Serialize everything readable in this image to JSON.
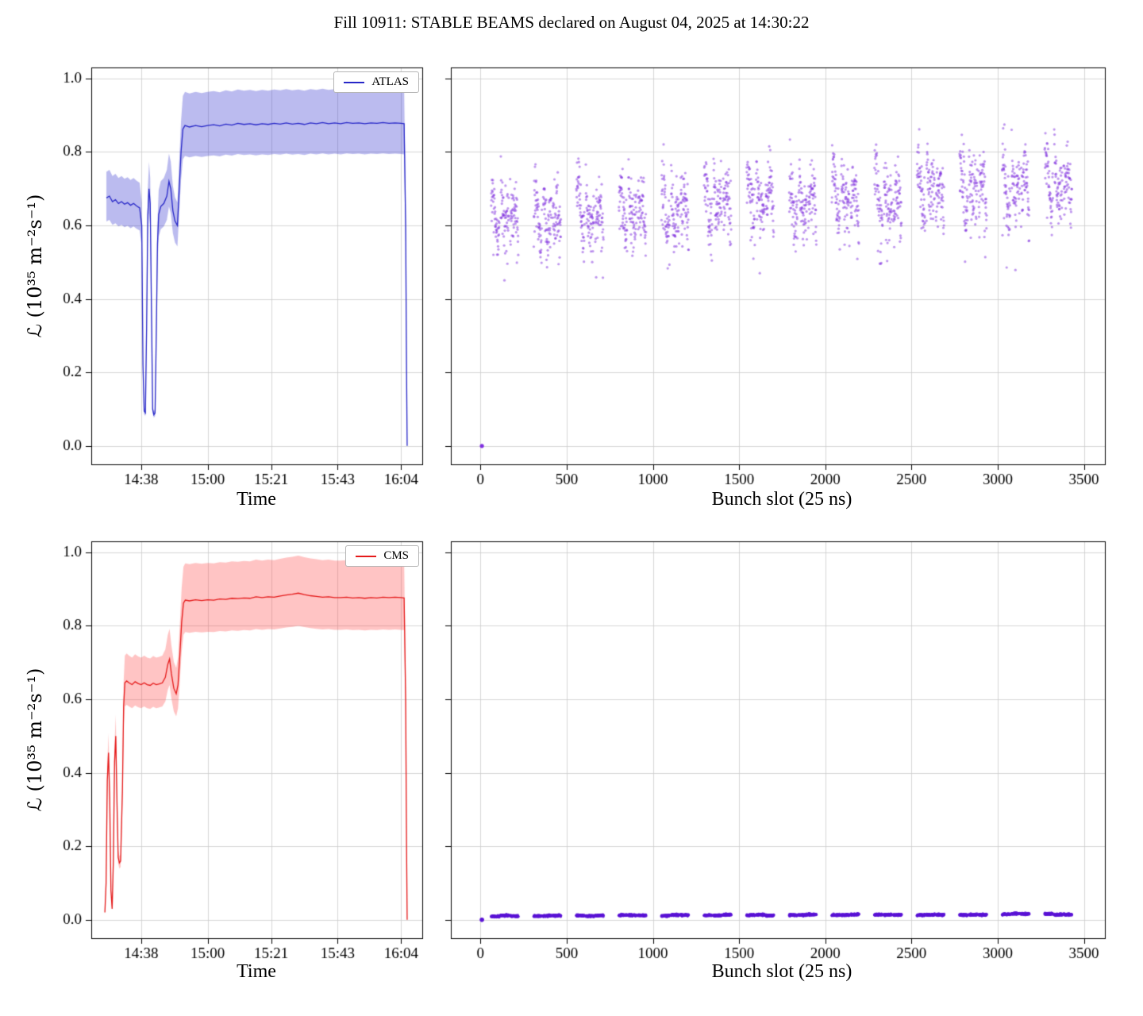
{
  "title": "Fill 10911: STABLE BEAMS declared on August 04, 2025 at 14:30:22",
  "grid_color": "#cccccc",
  "filling_scheme": {
    "start_slot": 62,
    "n_groups": 14,
    "trains_per_group": 3,
    "bunches_per_train": 48,
    "intra_train_gap": 7,
    "group_period": 247
  },
  "chart_data": [
    {
      "id": "atlas-luminosity-vs-time",
      "type": "area",
      "xlabel": "Time",
      "ylabel": "ℒ (10³⁵ m⁻²s⁻¹)",
      "legend": [
        "ATLAS"
      ],
      "line_color": "#2727c8",
      "band_color": "rgba(60,60,210,0.35)",
      "xlim": [
        21.5,
        131
      ],
      "ylim": [
        -0.05,
        1.03
      ],
      "x_ticks": [
        38,
        60,
        81,
        103,
        124
      ],
      "x_tick_labels": [
        "14:38",
        "15:00",
        "15:21",
        "15:43",
        "16:04"
      ],
      "y_ticks": [
        0.0,
        0.2,
        0.4,
        0.6,
        0.8,
        1.0
      ],
      "y_tick_labels": [
        "0.0",
        "0.2",
        "0.4",
        "0.6",
        "0.8",
        "1.0"
      ],
      "band_frac_upper": 0.105,
      "band_frac_lower": 0.095,
      "points": [
        [
          26.5,
          0.675
        ],
        [
          27.5,
          0.68
        ],
        [
          28.5,
          0.665
        ],
        [
          29.5,
          0.67
        ],
        [
          30.5,
          0.66
        ],
        [
          31.5,
          0.665
        ],
        [
          32.5,
          0.658
        ],
        [
          33.5,
          0.662
        ],
        [
          34.5,
          0.655
        ],
        [
          35.5,
          0.66
        ],
        [
          36.5,
          0.653
        ],
        [
          37.5,
          0.648
        ],
        [
          38.2,
          0.6
        ],
        [
          38.6,
          0.22
        ],
        [
          39,
          0.095
        ],
        [
          39.4,
          0.09
        ],
        [
          39.8,
          0.32
        ],
        [
          40.2,
          0.63
        ],
        [
          40.6,
          0.7
        ],
        [
          41,
          0.66
        ],
        [
          41.4,
          0.38
        ],
        [
          41.8,
          0.1
        ],
        [
          42.2,
          0.085
        ],
        [
          42.6,
          0.09
        ],
        [
          43,
          0.3
        ],
        [
          43.4,
          0.55
        ],
        [
          43.8,
          0.63
        ],
        [
          44.5,
          0.652
        ],
        [
          45.5,
          0.66
        ],
        [
          46.5,
          0.68
        ],
        [
          47.2,
          0.72
        ],
        [
          47.8,
          0.7
        ],
        [
          48.5,
          0.64
        ],
        [
          49.2,
          0.612
        ],
        [
          50,
          0.6
        ],
        [
          50.6,
          0.7
        ],
        [
          51.2,
          0.8
        ],
        [
          51.8,
          0.862
        ],
        [
          52.5,
          0.872
        ],
        [
          54,
          0.868
        ],
        [
          56,
          0.872
        ],
        [
          58,
          0.869
        ],
        [
          60,
          0.872
        ],
        [
          62,
          0.874
        ],
        [
          64,
          0.871
        ],
        [
          66,
          0.876
        ],
        [
          68,
          0.873
        ],
        [
          70,
          0.878
        ],
        [
          72,
          0.875
        ],
        [
          74,
          0.877
        ],
        [
          76,
          0.874
        ],
        [
          78,
          0.877
        ],
        [
          80,
          0.875
        ],
        [
          82,
          0.878
        ],
        [
          84,
          0.876
        ],
        [
          86,
          0.879
        ],
        [
          88,
          0.876
        ],
        [
          90,
          0.878
        ],
        [
          92,
          0.875
        ],
        [
          94,
          0.879
        ],
        [
          96,
          0.877
        ],
        [
          98,
          0.88
        ],
        [
          100,
          0.877
        ],
        [
          102,
          0.879
        ],
        [
          104,
          0.877
        ],
        [
          106,
          0.88
        ],
        [
          108,
          0.878
        ],
        [
          110,
          0.879
        ],
        [
          112,
          0.877
        ],
        [
          114,
          0.879
        ],
        [
          116,
          0.878
        ],
        [
          118,
          0.88
        ],
        [
          120,
          0.878
        ],
        [
          122,
          0.879
        ],
        [
          124,
          0.878
        ],
        [
          125,
          0.877
        ],
        [
          125.5,
          0.6
        ],
        [
          125.8,
          0.2
        ],
        [
          126,
          0.0
        ]
      ]
    },
    {
      "id": "atlas-bunch-by-bunch-luminosity",
      "type": "scatter",
      "xlabel": "Bunch slot (25 ns)",
      "ylabel": "",
      "marker_color": "#8030e0",
      "marker_alpha": 0.5,
      "marker_radius": 1.6,
      "xlim": [
        -172,
        3622
      ],
      "ylim": [
        -0.05,
        1.03
      ],
      "x_ticks": [
        0,
        500,
        1000,
        1500,
        2000,
        2500,
        3000,
        3500
      ],
      "x_tick_labels": [
        "0",
        "500",
        "1000",
        "1500",
        "2000",
        "2500",
        "3000",
        "3500"
      ],
      "y_ticks": [
        0.0,
        0.2,
        0.4,
        0.6,
        0.8,
        1.0
      ],
      "y_tick_labels": [],
      "pilot_point": [
        8,
        0.0
      ],
      "gen": {
        "y_base_start": 0.615,
        "y_trend": 0.105,
        "train_slope": -0.09,
        "wave_amp": 0.035,
        "noise": 0.042,
        "low_tail_prob": 0.05,
        "low_tail": 0.14,
        "train_offset": 0.015,
        "y_min": 0.43,
        "y_max": 0.93,
        "seed": 20250804
      }
    },
    {
      "id": "cms-luminosity-vs-time",
      "type": "area",
      "xlabel": "Time",
      "ylabel": "ℒ (10³⁵ m⁻²s⁻¹)",
      "legend": [
        "CMS"
      ],
      "line_color": "#e51a1a",
      "band_color": "rgba(255,70,70,0.32)",
      "xlim": [
        21.5,
        131
      ],
      "ylim": [
        -0.05,
        1.03
      ],
      "x_ticks": [
        38,
        60,
        81,
        103,
        124
      ],
      "x_tick_labels": [
        "14:38",
        "15:00",
        "15:21",
        "15:43",
        "16:04"
      ],
      "y_ticks": [
        0.0,
        0.2,
        0.4,
        0.6,
        0.8,
        1.0
      ],
      "y_tick_labels": [
        "0.0",
        "0.2",
        "0.4",
        "0.6",
        "0.8",
        "1.0"
      ],
      "band_frac_upper": 0.115,
      "band_frac_lower": 0.1,
      "points": [
        [
          26,
          0.02
        ],
        [
          26.4,
          0.1
        ],
        [
          26.8,
          0.38
        ],
        [
          27.2,
          0.455
        ],
        [
          27.6,
          0.33
        ],
        [
          28,
          0.08
        ],
        [
          28.4,
          0.03
        ],
        [
          28.8,
          0.16
        ],
        [
          29.2,
          0.43
        ],
        [
          29.6,
          0.5
        ],
        [
          30,
          0.32
        ],
        [
          30.4,
          0.17
        ],
        [
          30.8,
          0.155
        ],
        [
          31.2,
          0.16
        ],
        [
          31.8,
          0.35
        ],
        [
          32.2,
          0.58
        ],
        [
          32.6,
          0.645
        ],
        [
          33.2,
          0.65
        ],
        [
          34,
          0.645
        ],
        [
          35,
          0.64
        ],
        [
          36,
          0.648
        ],
        [
          37,
          0.643
        ],
        [
          38,
          0.64
        ],
        [
          39,
          0.645
        ],
        [
          40,
          0.64
        ],
        [
          41,
          0.638
        ],
        [
          42,
          0.644
        ],
        [
          43,
          0.64
        ],
        [
          44,
          0.642
        ],
        [
          45,
          0.645
        ],
        [
          46,
          0.66
        ],
        [
          46.8,
          0.695
        ],
        [
          47.4,
          0.71
        ],
        [
          48,
          0.67
        ],
        [
          48.8,
          0.63
        ],
        [
          49.6,
          0.615
        ],
        [
          50.2,
          0.64
        ],
        [
          50.8,
          0.72
        ],
        [
          51.4,
          0.81
        ],
        [
          52,
          0.862
        ],
        [
          52.6,
          0.87
        ],
        [
          54,
          0.868
        ],
        [
          56,
          0.871
        ],
        [
          58,
          0.869
        ],
        [
          60,
          0.871
        ],
        [
          62,
          0.87
        ],
        [
          64,
          0.873
        ],
        [
          66,
          0.872
        ],
        [
          68,
          0.875
        ],
        [
          70,
          0.874
        ],
        [
          72,
          0.876
        ],
        [
          74,
          0.875
        ],
        [
          76,
          0.879
        ],
        [
          78,
          0.877
        ],
        [
          80,
          0.879
        ],
        [
          82,
          0.878
        ],
        [
          84,
          0.881
        ],
        [
          86,
          0.884
        ],
        [
          88,
          0.886
        ],
        [
          90,
          0.889
        ],
        [
          92,
          0.885
        ],
        [
          94,
          0.882
        ],
        [
          96,
          0.88
        ],
        [
          98,
          0.878
        ],
        [
          100,
          0.879
        ],
        [
          102,
          0.877
        ],
        [
          104,
          0.877
        ],
        [
          106,
          0.878
        ],
        [
          108,
          0.876
        ],
        [
          110,
          0.877
        ],
        [
          112,
          0.875
        ],
        [
          114,
          0.877
        ],
        [
          116,
          0.876
        ],
        [
          118,
          0.878
        ],
        [
          120,
          0.877
        ],
        [
          122,
          0.878
        ],
        [
          124,
          0.877
        ],
        [
          125,
          0.876
        ],
        [
          125.5,
          0.6
        ],
        [
          125.8,
          0.2
        ],
        [
          126,
          0.0
        ]
      ]
    },
    {
      "id": "cms-bunch-by-bunch-luminosity",
      "type": "scatter",
      "xlabel": "Bunch slot (25 ns)",
      "ylabel": "",
      "marker_color": "#5b13d6",
      "marker_alpha": 0.85,
      "marker_radius": 1.8,
      "xlim": [
        -172,
        3622
      ],
      "ylim": [
        -0.05,
        1.03
      ],
      "x_ticks": [
        0,
        500,
        1000,
        1500,
        2000,
        2500,
        3000,
        3500
      ],
      "x_tick_labels": [
        "0",
        "500",
        "1000",
        "1500",
        "2000",
        "2500",
        "3000",
        "3500"
      ],
      "y_ticks": [
        0.0,
        0.2,
        0.4,
        0.6,
        0.8,
        1.0
      ],
      "y_tick_labels": [],
      "pilot_point": [
        8,
        0.0
      ],
      "gen": {
        "y_base_start": 0.0105,
        "y_trend": 0.005,
        "train_slope": 0,
        "wave_amp": 0,
        "noise": 0.0012,
        "low_tail_prob": 0,
        "low_tail": 0,
        "train_offset": 0.0015,
        "y_min": 0.004,
        "y_max": 0.022,
        "seed": 424242
      }
    }
  ]
}
